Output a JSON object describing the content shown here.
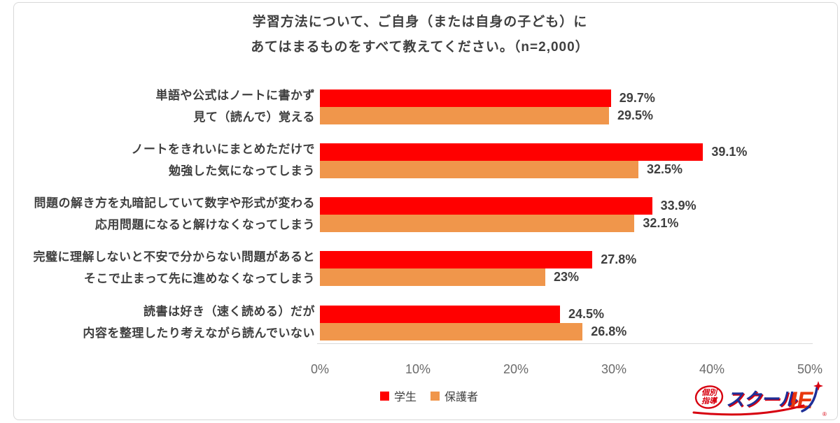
{
  "title": {
    "line1": "学習方法について、ご自身（または自身の子ども）に",
    "line2": "あてはまるものをすべて教えてください。（n=2,000）"
  },
  "chart_data": {
    "type": "bar",
    "orientation": "horizontal",
    "title": "学習方法について、ご自身（または自身の子ども）に あてはまるものをすべて教えてください。（n=2,000）",
    "x_ticks": [
      "0%",
      "10%",
      "20%",
      "30%",
      "40%",
      "50%"
    ],
    "xlim": [
      0,
      50
    ],
    "grid": false,
    "legend_position": "bottom",
    "series": [
      {
        "name": "学生",
        "color": "#ff0000",
        "values": [
          29.7,
          39.1,
          33.9,
          27.8,
          24.5
        ]
      },
      {
        "name": "保護者",
        "color": "#f0964b",
        "values": [
          29.5,
          32.5,
          32.1,
          23,
          26.8
        ]
      }
    ],
    "groups": [
      {
        "label_line1": "単語や公式はノートに書かず",
        "label_line2": "見て（読んで）覚える",
        "student": 29.7,
        "student_label": "29.7%",
        "parent": 29.5,
        "parent_label": "29.5%"
      },
      {
        "label_line1": "ノートをきれいにまとめただけで",
        "label_line2": "勉強した気になってしまう",
        "student": 39.1,
        "student_label": "39.1%",
        "parent": 32.5,
        "parent_label": "32.5%"
      },
      {
        "label_line1": "問題の解き方を丸暗記していて数字や形式が変わる",
        "label_line2": "応用問題になると解けなくなってしまう",
        "student": 33.9,
        "student_label": "33.9%",
        "parent": 32.1,
        "parent_label": "32.1%"
      },
      {
        "label_line1": "完璧に理解しないと不安で分からない問題があると",
        "label_line2": "そこで止まって先に進めなくなってしまう",
        "student": 27.8,
        "student_label": "27.8%",
        "parent": 23,
        "parent_label": "23%"
      },
      {
        "label_line1": "読書は好き（速く読める）だが",
        "label_line2": "内容を整理したり考えながら読んでいない",
        "student": 24.5,
        "student_label": "24.5%",
        "parent": 26.8,
        "parent_label": "26.8%"
      }
    ]
  },
  "legend": {
    "student": "学生",
    "parent": "保護者"
  },
  "logo": {
    "tagline_line1": "個別",
    "tagline_line2": "指導",
    "brand_main": "スクール",
    "brand_suffix": "IE",
    "registered_mark": "®",
    "brand_blue": "#1e2f97",
    "brand_red": "#d7000f",
    "suffix_red": "#e8380d"
  }
}
